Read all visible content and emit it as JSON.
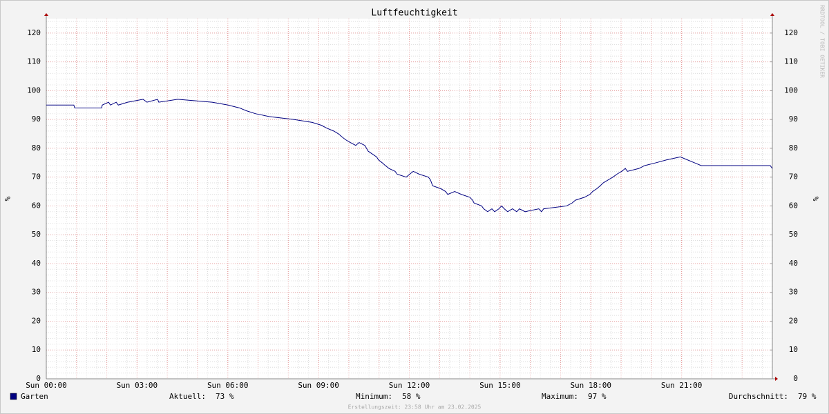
{
  "chart_data": {
    "type": "line",
    "title": "Luftfeuchtigkeit",
    "ylabel": "%",
    "y2label": "%",
    "x": [
      0,
      0.91,
      0.94,
      1.83,
      1.85,
      2.06,
      2.12,
      2.31,
      2.38,
      2.69,
      3.2,
      3.33,
      3.68,
      3.72,
      4.34,
      5.48,
      6.01,
      6.39,
      6.62,
      6.92,
      7.38,
      8.18,
      8.79,
      9.09,
      9.27,
      9.5,
      9.66,
      9.77,
      9.89,
      10.05,
      10.23,
      10.34,
      10.53,
      10.64,
      10.92,
      10.98,
      11.1,
      11.21,
      11.33,
      11.53,
      11.6,
      11.9,
      12.01,
      12.13,
      12.33,
      12.63,
      12.7,
      12.77,
      13.04,
      13.2,
      13.27,
      13.5,
      13.72,
      14.0,
      14.09,
      14.14,
      14.39,
      14.46,
      14.59,
      14.73,
      14.82,
      14.96,
      15.05,
      15.14,
      15.25,
      15.41,
      15.55,
      15.64,
      15.83,
      16.28,
      16.37,
      16.44,
      17.2,
      17.38,
      17.49,
      17.79,
      17.97,
      18.06,
      18.2,
      18.31,
      18.41,
      18.57,
      18.73,
      18.86,
      19.02,
      19.14,
      19.21,
      19.59,
      19.78,
      20.16,
      20.51,
      20.96,
      21.19,
      21.42,
      21.65,
      23.93,
      24.0
    ],
    "series": [
      {
        "name": "Garten",
        "color": "#000080",
        "values": [
          95,
          95,
          94,
          94,
          95,
          96,
          95,
          96,
          95,
          96,
          97,
          96,
          97,
          96,
          97,
          96,
          95,
          94,
          93,
          92,
          91,
          90,
          89,
          88,
          87,
          86,
          85,
          84,
          83,
          82,
          81,
          82,
          81,
          79,
          77,
          76,
          75,
          74,
          73,
          72,
          71,
          70,
          71,
          72,
          71,
          70,
          69,
          67,
          66,
          65,
          64,
          65,
          64,
          63,
          62,
          61,
          60,
          59,
          58,
          59,
          58,
          59,
          60,
          59,
          58,
          59,
          58,
          59,
          58,
          59,
          58,
          59,
          60,
          61,
          62,
          63,
          64,
          65,
          66,
          67,
          68,
          69,
          70,
          71,
          72,
          73,
          72,
          73,
          74,
          75,
          76,
          77,
          76,
          75,
          74,
          74,
          73
        ]
      }
    ],
    "xlim": [
      0,
      24
    ],
    "xticks": [
      {
        "value": 0,
        "label": "Sun 00:00"
      },
      {
        "value": 3,
        "label": "Sun 03:00"
      },
      {
        "value": 6,
        "label": "Sun 06:00"
      },
      {
        "value": 9,
        "label": "Sun 09:00"
      },
      {
        "value": 12,
        "label": "Sun 12:00"
      },
      {
        "value": 15,
        "label": "Sun 15:00"
      },
      {
        "value": 18,
        "label": "Sun 18:00"
      },
      {
        "value": 21,
        "label": "Sun 21:00"
      }
    ],
    "ylim": [
      0,
      125
    ],
    "yticks": [
      0,
      10,
      20,
      30,
      40,
      50,
      60,
      70,
      80,
      90,
      100,
      110,
      120
    ],
    "y2lim": [
      0,
      125
    ],
    "y2ticks": [
      0,
      10,
      20,
      30,
      40,
      50,
      60,
      70,
      80,
      90,
      100,
      110,
      120
    ],
    "grid": true,
    "stats": [
      {
        "label": "Aktuell:",
        "value": "73 %"
      },
      {
        "label": "Minimum:",
        "value": "58 %"
      },
      {
        "label": "Maximum:",
        "value": "97 %"
      },
      {
        "label": "Durchschnitt:",
        "value": "79 %"
      }
    ],
    "side_text": "RRDTOOL / TOBI OETIKER",
    "footer": "Erstellungszeit: 23:58 Uhr am 23.02.2025"
  }
}
